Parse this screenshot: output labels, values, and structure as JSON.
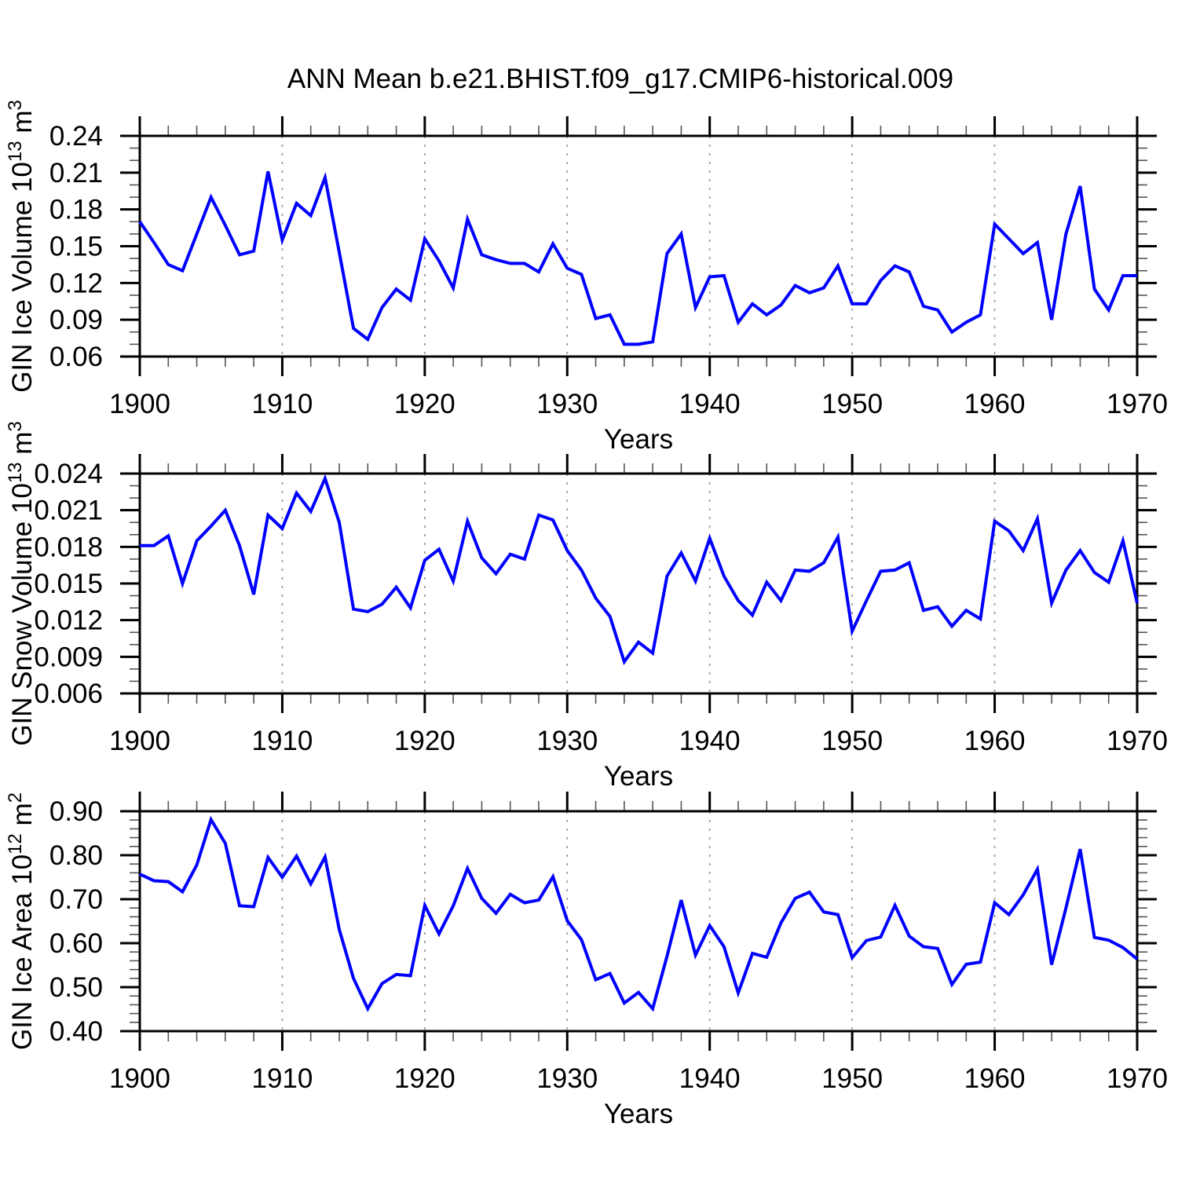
{
  "title": "ANN Mean b.e21.BHIST.f09_g17.CMIP6-historical.009",
  "colors": {
    "line": "#0000ff",
    "grid": "#999999",
    "axis": "#000000",
    "minor_tick": "#555555",
    "text": "#000000"
  },
  "chart_data": [
    {
      "type": "line",
      "series_name": "GIN Ice Volume",
      "ylabel": "GIN Ice Volume 10^13 m^3",
      "ylabel_parts": [
        {
          "t": "GIN Ice Volume 10"
        },
        {
          "t": "13",
          "sup": true
        },
        {
          "t": " m"
        },
        {
          "t": "3",
          "sup": true
        }
      ],
      "xlabel": "Years",
      "xlim": [
        1900,
        1970
      ],
      "ylim": [
        0.06,
        0.24
      ],
      "x_major_ticks": [
        1900,
        1910,
        1920,
        1930,
        1940,
        1950,
        1960,
        1970
      ],
      "x_tick_labels": [
        "1900",
        "1910",
        "1920",
        "1930",
        "1940",
        "1950",
        "1960",
        "1970"
      ],
      "x_minor_step": 2,
      "y_major_ticks": [
        0.06,
        0.09,
        0.12,
        0.15,
        0.18,
        0.21,
        0.24
      ],
      "y_tick_labels": [
        "0.06",
        "0.09",
        "0.12",
        "0.15",
        "0.18",
        "0.21",
        "0.24"
      ],
      "y_minor_step": 0.01,
      "gridlines_x": [
        1910,
        1920,
        1930,
        1940,
        1950,
        1960
      ],
      "x_start": 1900,
      "x_step": 1,
      "values": [
        0.17,
        0.153,
        0.135,
        0.13,
        0.16,
        0.19,
        0.167,
        0.143,
        0.146,
        0.211,
        0.155,
        0.185,
        0.175,
        0.206,
        0.145,
        0.083,
        0.074,
        0.1,
        0.115,
        0.106,
        0.156,
        0.138,
        0.116,
        0.172,
        0.143,
        0.139,
        0.136,
        0.136,
        0.129,
        0.152,
        0.132,
        0.127,
        0.091,
        0.094,
        0.07,
        0.07,
        0.072,
        0.144,
        0.16,
        0.1,
        0.125,
        0.126,
        0.088,
        0.103,
        0.094,
        0.102,
        0.118,
        0.112,
        0.116,
        0.134,
        0.103,
        0.103,
        0.122,
        0.134,
        0.129,
        0.101,
        0.098,
        0.08,
        0.088,
        0.094,
        0.168,
        0.156,
        0.144,
        0.153,
        0.09,
        0.16,
        0.199,
        0.115,
        0.098,
        0.126,
        0.126
      ]
    },
    {
      "type": "line",
      "series_name": "GIN Snow Volume",
      "ylabel": "GIN Snow Volume 10^13 m^3",
      "ylabel_parts": [
        {
          "t": "GIN Snow Volume 10"
        },
        {
          "t": "13",
          "sup": true
        },
        {
          "t": " m"
        },
        {
          "t": "3",
          "sup": true
        }
      ],
      "xlabel": "Years",
      "xlim": [
        1900,
        1970
      ],
      "ylim": [
        0.006,
        0.024
      ],
      "x_major_ticks": [
        1900,
        1910,
        1920,
        1930,
        1940,
        1950,
        1960,
        1970
      ],
      "x_tick_labels": [
        "1900",
        "1910",
        "1920",
        "1930",
        "1940",
        "1950",
        "1960",
        "1970"
      ],
      "x_minor_step": 2,
      "y_major_ticks": [
        0.006,
        0.009,
        0.012,
        0.015,
        0.018,
        0.021,
        0.024
      ],
      "y_tick_labels": [
        "0.006",
        "0.009",
        "0.012",
        "0.015",
        "0.018",
        "0.021",
        "0.024"
      ],
      "y_minor_step": 0.001,
      "gridlines_x": [
        1910,
        1920,
        1930,
        1940,
        1950,
        1960
      ],
      "x_start": 1900,
      "x_step": 1,
      "values": [
        0.0181,
        0.0181,
        0.0189,
        0.015,
        0.0185,
        0.0197,
        0.021,
        0.0181,
        0.0141,
        0.0206,
        0.0195,
        0.0224,
        0.0209,
        0.0236,
        0.02,
        0.0129,
        0.0127,
        0.0133,
        0.0147,
        0.013,
        0.0169,
        0.0178,
        0.0152,
        0.0201,
        0.0171,
        0.0158,
        0.0174,
        0.017,
        0.0206,
        0.0202,
        0.0177,
        0.0161,
        0.0138,
        0.0123,
        0.0086,
        0.0102,
        0.0093,
        0.0156,
        0.0175,
        0.0152,
        0.0187,
        0.0156,
        0.0136,
        0.0124,
        0.0151,
        0.0136,
        0.0161,
        0.016,
        0.0167,
        0.0188,
        0.0111,
        0.0136,
        0.016,
        0.0161,
        0.0167,
        0.0128,
        0.0131,
        0.0115,
        0.0128,
        0.0121,
        0.0201,
        0.0193,
        0.0177,
        0.0203,
        0.0134,
        0.0161,
        0.0177,
        0.0159,
        0.0151,
        0.0185,
        0.0134
      ]
    },
    {
      "type": "line",
      "series_name": "GIN Ice Area",
      "ylabel": "GIN Ice Area 10^12 m^2",
      "ylabel_parts": [
        {
          "t": "GIN Ice Area 10"
        },
        {
          "t": "12",
          "sup": true
        },
        {
          "t": " m"
        },
        {
          "t": "2",
          "sup": true
        }
      ],
      "xlabel": "Years",
      "xlim": [
        1900,
        1970
      ],
      "ylim": [
        0.4,
        0.9
      ],
      "x_major_ticks": [
        1900,
        1910,
        1920,
        1930,
        1940,
        1950,
        1960,
        1970
      ],
      "x_tick_labels": [
        "1900",
        "1910",
        "1920",
        "1930",
        "1940",
        "1950",
        "1960",
        "1970"
      ],
      "x_minor_step": 2,
      "y_major_ticks": [
        0.4,
        0.5,
        0.6,
        0.7,
        0.8,
        0.9
      ],
      "y_tick_labels": [
        "0.40",
        "0.50",
        "0.60",
        "0.70",
        "0.80",
        "0.90"
      ],
      "y_minor_step": 0.02,
      "gridlines_x": [
        1910,
        1920,
        1930,
        1940,
        1950,
        1960
      ],
      "x_start": 1900,
      "x_step": 1,
      "values": [
        0.757,
        0.742,
        0.74,
        0.717,
        0.778,
        0.881,
        0.827,
        0.685,
        0.683,
        0.795,
        0.75,
        0.798,
        0.735,
        0.796,
        0.631,
        0.52,
        0.451,
        0.508,
        0.529,
        0.526,
        0.686,
        0.621,
        0.685,
        0.77,
        0.702,
        0.668,
        0.711,
        0.692,
        0.698,
        0.751,
        0.651,
        0.608,
        0.517,
        0.531,
        0.464,
        0.488,
        0.451,
        0.57,
        0.698,
        0.573,
        0.64,
        0.592,
        0.487,
        0.577,
        0.568,
        0.646,
        0.702,
        0.716,
        0.671,
        0.665,
        0.567,
        0.606,
        0.614,
        0.686,
        0.616,
        0.592,
        0.588,
        0.506,
        0.552,
        0.557,
        0.692,
        0.665,
        0.71,
        0.768,
        0.551,
        0.68,
        0.814,
        0.613,
        0.607,
        0.59,
        0.564
      ]
    }
  ]
}
